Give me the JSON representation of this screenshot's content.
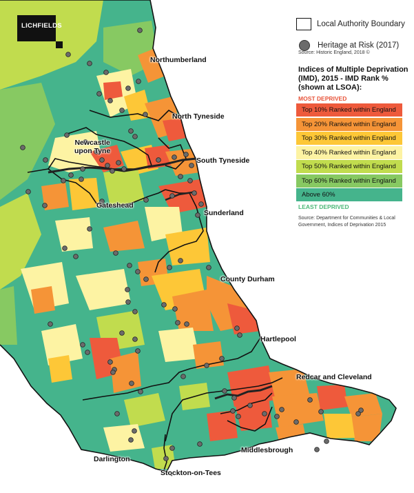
{
  "logo_text": "LICHFIELDS",
  "places": [
    {
      "id": "northumberland",
      "text": "Northumberland"
    },
    {
      "id": "north-tyneside",
      "text": "North Tyneside"
    },
    {
      "id": "newcastle",
      "text": "Newcastle\nupon Tyne"
    },
    {
      "id": "south-tyneside",
      "text": "South Tyneside"
    },
    {
      "id": "gateshead",
      "text": "Gateshead"
    },
    {
      "id": "sunderland",
      "text": "Sunderland"
    },
    {
      "id": "county-durham",
      "text": "County Durham"
    },
    {
      "id": "hartlepool",
      "text": "Hartlepool"
    },
    {
      "id": "redcar",
      "text": "Redcar and Cleveland"
    },
    {
      "id": "darlington",
      "text": "Darlington"
    },
    {
      "id": "middlesbrough",
      "text": "Middlesbrough"
    },
    {
      "id": "stockton",
      "text": "Stockton-on-Tees"
    }
  ],
  "legend": {
    "boundary_label": "Local Authority Boundary",
    "heritage_label": "Heritage at Risk (2017)",
    "heritage_source": "Source: Historic England, 2018 ©",
    "imd_title": "Indices of Multiple Deprivation (IMD), 2015 - IMD Rank % (shown at LSOA):",
    "most_deprived": "MOST DEPRIVED",
    "least_deprived": "LEAST DEPRIVED",
    "classes": [
      {
        "label": "Top 10% Ranked within England",
        "color": "#ee5a3c"
      },
      {
        "label": "Top 20% Ranked within England",
        "color": "#f59437"
      },
      {
        "label": "Top 30% Ranked within England",
        "color": "#fdc737"
      },
      {
        "label": "Top 40% Ranked within England",
        "color": "#fdf3a3"
      },
      {
        "label": "Top 50% Ranked within England",
        "color": "#c1dc4e"
      },
      {
        "label": "Top 60% Ranked within England",
        "color": "#87c962"
      },
      {
        "label": "Above 60%",
        "color": "#45b48c"
      }
    ],
    "imd_source": "Source: Department for Communities & Local Government, Indices of Deprivation 2015"
  },
  "colors": {
    "sea": "#ffffff",
    "boundary": "#111111",
    "river": "#222222",
    "heritage_dot": "#6b6b6b"
  }
}
